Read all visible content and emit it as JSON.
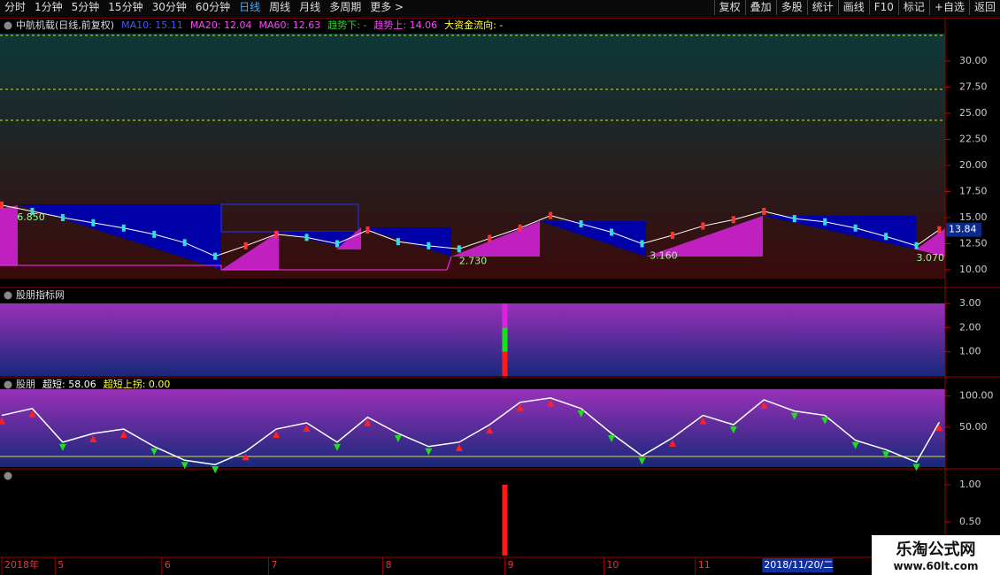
{
  "toolbar": {
    "periods": [
      "分时",
      "1分钟",
      "5分钟",
      "15分钟",
      "30分钟",
      "60分钟",
      "日线",
      "周线",
      "月线",
      "多周期",
      "更多 >"
    ],
    "active": 6,
    "buttons": [
      "复权",
      "叠加",
      "多股",
      "统计",
      "画线",
      "F10",
      "标记",
      "+自选",
      "返回"
    ]
  },
  "chart_data": [
    {
      "type": "line",
      "title": "中航机载(日线,前复权)",
      "indicators": [
        {
          "name": "MA10: 15.11",
          "color": "#3a5cff"
        },
        {
          "name": "MA20: 12.04",
          "color": "#ff44ff"
        },
        {
          "name": "MA60: 12.63",
          "color": "#ff44ff"
        },
        {
          "name": "趋势下: -",
          "color": "#22dd22"
        },
        {
          "name": "趋势上: 14.06",
          "color": "#ff44ff"
        },
        {
          "name": "大资金流向: -",
          "color": "#ffff33"
        }
      ],
      "x": [
        0,
        4,
        8,
        12,
        16,
        20,
        24,
        28,
        32,
        36,
        40,
        44,
        48,
        52,
        56,
        60,
        64,
        68,
        72,
        76,
        80,
        84,
        88,
        92,
        96,
        100,
        104,
        108,
        112,
        116,
        120,
        123
      ],
      "values": [
        16.2,
        15.6,
        15.0,
        14.5,
        14.0,
        13.4,
        12.6,
        11.3,
        12.3,
        13.4,
        13.1,
        12.5,
        13.8,
        12.7,
        12.3,
        12.0,
        13.0,
        14.0,
        15.2,
        14.4,
        13.6,
        12.5,
        13.3,
        14.2,
        14.8,
        15.6,
        14.9,
        14.6,
        14.0,
        13.2,
        12.3,
        13.84
      ],
      "color": "#ffffff",
      "up_color": "#ff3333",
      "down_color": "#33dddd",
      "levels": [
        32.46,
        27.29,
        24.32
      ],
      "annotations": [
        {
          "x": 2,
          "label": "6.850"
        },
        {
          "x": 60,
          "label": "2.730"
        },
        {
          "x": 85,
          "label": "3.160"
        },
        {
          "x": 120,
          "label": "3.070"
        }
      ],
      "ylim": [
        9.15,
        32.63
      ],
      "yticks": [
        {
          "value": 10,
          "label": "10.00"
        },
        {
          "value": 12.5,
          "label": "12.50"
        },
        {
          "value": 15,
          "label": "15.00"
        },
        {
          "value": 17.5,
          "label": "17.50"
        },
        {
          "value": 20,
          "label": "20.00"
        },
        {
          "value": 22.5,
          "label": "22.50"
        },
        {
          "value": 25,
          "label": "25.00"
        },
        {
          "value": 27.5,
          "label": "27.50"
        },
        {
          "value": 30,
          "label": "30.00"
        }
      ]
    },
    {
      "type": "stacked-bar",
      "title": "股朋指标网",
      "x": 66,
      "stack": [
        {
          "color": "#ff1a1a",
          "value": 1
        },
        {
          "color": "#1adf1a",
          "value": 1
        },
        {
          "color": "#e020e0",
          "value": 1
        }
      ],
      "ylim": [
        0,
        3
      ],
      "yticks": [
        {
          "value": 1,
          "label": "1.00"
        },
        {
          "value": 2,
          "label": "2.00"
        },
        {
          "value": 3,
          "label": "3.00"
        }
      ]
    },
    {
      "type": "oscillator",
      "title": "股朋",
      "labels": [
        {
          "name": "超短: 58.06",
          "color": "#ffffff"
        },
        {
          "name": "超短上拐: 0.00",
          "color": "#ffff33"
        }
      ],
      "x": [
        0,
        4,
        8,
        12,
        16,
        20,
        24,
        28,
        32,
        36,
        40,
        44,
        48,
        52,
        56,
        60,
        64,
        68,
        72,
        76,
        80,
        84,
        88,
        92,
        96,
        100,
        104,
        108,
        112,
        116,
        120,
        123
      ],
      "values": [
        69,
        80,
        26,
        40,
        47,
        19,
        -3,
        -10,
        11,
        47,
        57,
        26,
        66,
        40,
        19,
        26,
        54,
        90,
        97,
        80,
        40,
        4,
        33,
        69,
        54,
        94,
        76,
        69,
        29,
        14,
        -6,
        58.06
      ],
      "reference": 3,
      "ylim": [
        -14,
        111
      ],
      "yticks": [
        {
          "value": 50,
          "label": "50.00"
        },
        {
          "value": 100,
          "label": "100.00"
        }
      ]
    },
    {
      "type": "bar",
      "x": 66,
      "value": 1,
      "color": "#ff1a1a",
      "ylim": [
        0.05,
        1.19
      ],
      "yticks": [
        {
          "value": 0.5,
          "label": "0.50"
        },
        {
          "value": 1,
          "label": "1.00"
        }
      ]
    }
  ],
  "x_axis": {
    "ticks": [
      {
        "value": 0,
        "label": "2018年"
      },
      {
        "value": 7,
        "label": "5"
      },
      {
        "value": 21,
        "label": "6"
      },
      {
        "value": 35,
        "label": "7"
      },
      {
        "value": 50,
        "label": "8"
      },
      {
        "value": 66,
        "label": "9"
      },
      {
        "value": 79,
        "label": "10"
      },
      {
        "value": 91,
        "label": "11"
      }
    ],
    "cursor": {
      "value": 100,
      "label": "2018/11/20/二"
    }
  },
  "watermark": {
    "title": "乐淘公式网",
    "url": "www.60lt.com"
  }
}
